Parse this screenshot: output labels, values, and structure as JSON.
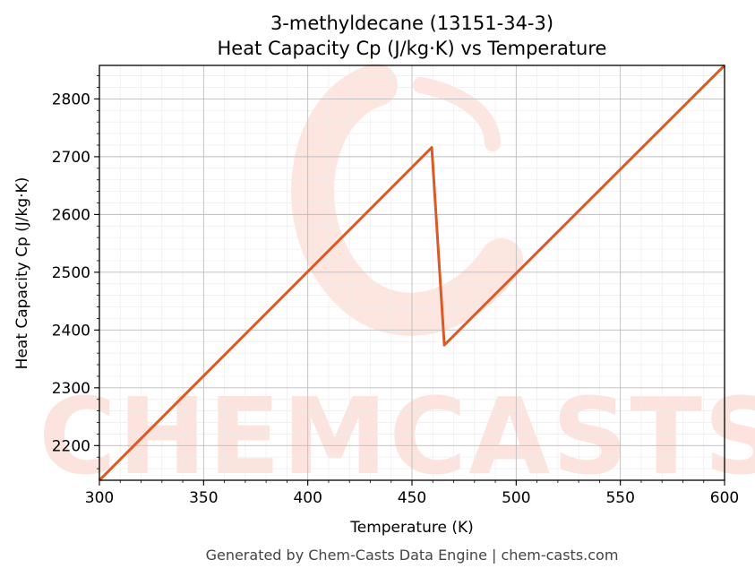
{
  "chart_data": {
    "type": "line",
    "title": "3-methyldecane (13151-34-3)",
    "subtitle": "Heat Capacity Cp (J/kg·K) vs Temperature",
    "xlabel": "Temperature (K)",
    "ylabel": "Heat Capacity Cp (J/kg·K)",
    "xlim": [
      300,
      600
    ],
    "ylim": [
      2140,
      2858
    ],
    "xticks": [
      300,
      350,
      400,
      450,
      500,
      550,
      600
    ],
    "yticks": [
      2200,
      2300,
      2400,
      2500,
      2600,
      2700,
      2800
    ],
    "grid": true,
    "legend": "none",
    "line_color": "#d95a27",
    "series": [
      {
        "x": [
          300,
          459.5,
          465.5,
          600
        ],
        "y": [
          2140,
          2716,
          2374,
          2858
        ]
      }
    ]
  },
  "watermark": {
    "text": "CHEMCASTS",
    "color": "#fde3dd"
  },
  "footer": {
    "text": "Generated by Chem-Casts Data Engine | chem-casts.com"
  }
}
